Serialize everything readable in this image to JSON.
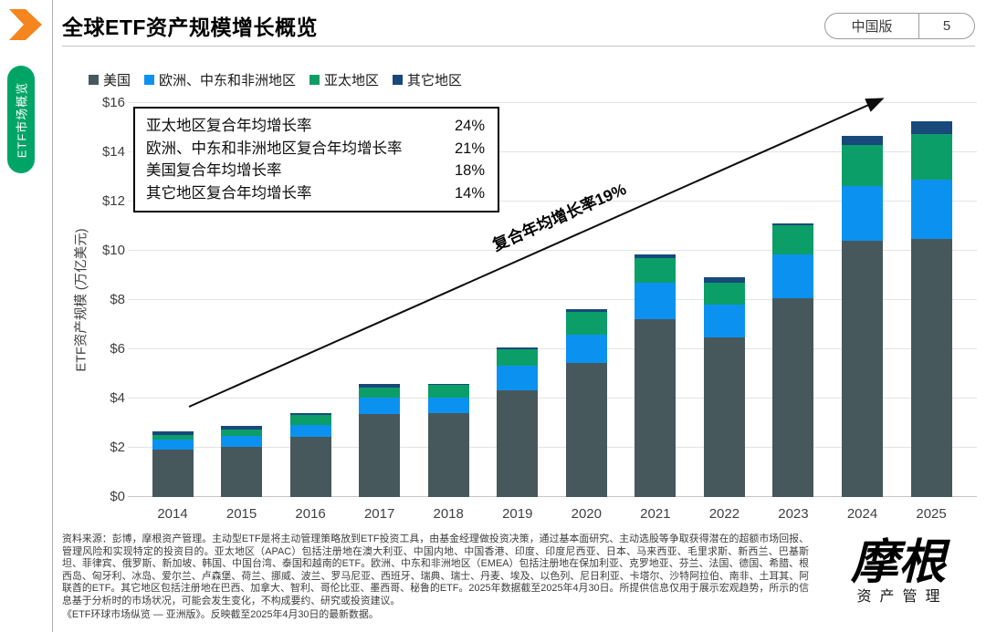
{
  "page": {
    "title": "全球ETF资产规模增长概览",
    "edition": "中国版",
    "page_number": "5",
    "sidebar_tab": "ETF市场概览"
  },
  "logo": {
    "brand": "摩根",
    "division": "资产管理"
  },
  "colors": {
    "accent_orange": "#F5861F",
    "tab_green": "#00A566",
    "us": "#47585C",
    "emea": "#0B92F0",
    "apac": "#0C9E68",
    "other": "#17497B"
  },
  "chart_data": {
    "type": "bar",
    "stacked": true,
    "ylabel": "ETF资产规模 (万亿美元)",
    "ylim": [
      0,
      16
    ],
    "ytick_step": 2,
    "yticks": [
      "$0",
      "$2",
      "$4",
      "$6",
      "$8",
      "$10",
      "$12",
      "$14",
      "$16"
    ],
    "grid": true,
    "legend_position": "top",
    "categories": [
      "2014",
      "2015",
      "2016",
      "2017",
      "2018",
      "2019",
      "2020",
      "2021",
      "2022",
      "2023",
      "2024",
      "2025"
    ],
    "series": [
      {
        "name": "美国",
        "color": "#47585C",
        "values": [
          1.93,
          2.05,
          2.44,
          3.37,
          3.4,
          4.32,
          5.45,
          7.24,
          6.48,
          8.07,
          10.41,
          10.47
        ]
      },
      {
        "name": "欧洲、中东和非洲地区",
        "color": "#0B92F0",
        "values": [
          0.41,
          0.43,
          0.47,
          0.65,
          0.62,
          1.0,
          1.15,
          1.45,
          1.33,
          1.8,
          2.22,
          2.43
        ]
      },
      {
        "name": "亚太地区",
        "color": "#0C9E68",
        "values": [
          0.17,
          0.25,
          0.43,
          0.43,
          0.52,
          0.67,
          0.93,
          1.01,
          0.91,
          1.18,
          1.67,
          1.85
        ]
      },
      {
        "name": "其它地区",
        "color": "#17497B",
        "values": [
          0.15,
          0.17,
          0.08,
          0.14,
          0.04,
          0.08,
          0.09,
          0.14,
          0.22,
          0.05,
          0.36,
          0.5
        ]
      }
    ],
    "annotations": {
      "cagr_box": [
        {
          "label": "亚太地区复合年均增长率",
          "value": "24%"
        },
        {
          "label": "欧洲、中东和非洲地区复合年均增长率",
          "value": "21%"
        },
        {
          "label": "美国复合年均增长率",
          "value": "18%"
        },
        {
          "label": "其它地区复合年均增长率",
          "value": "14%"
        }
      ],
      "arrow_label": "复合年均增长率19%"
    }
  },
  "footnote": {
    "source": "资料来源：彭博，摩根资产管理。主动型ETF是将主动管理策略放到ETF投资工具，由基金经理做投资决策，通过基本面研究、主动选股等争取获得潜在的超额市场回报、管理风险和实现特定的投资目的。亚太地区（APAC）包括注册地在澳大利亚、中国内地、中国香港、印度、印度尼西亚、日本、马来西亚、毛里求斯、新西兰、巴基斯坦、菲律宾、俄罗斯、新加坡、韩国、中国台湾、泰国和越南的ETF。欧洲、中东和非洲地区（EMEA）包括注册地在保加利亚、克罗地亚、芬兰、法国、德国、希腊、根西岛、匈牙利、冰岛、爱尔兰、卢森堡、荷兰、挪威、波兰、罗马尼亚、西班牙、瑞典、瑞士、丹麦、埃及、以色列、尼日利亚、卡塔尔、沙特阿拉伯、南非、土耳其、阿联酋的ETF。其它地区包括注册地在巴西、加拿大、智利、哥伦比亚、墨西哥、秘鲁的ETF。2025年数据截至2025年4月30日。所提供信息仅用于展示宏观趋势，所示的信息基于分析时的市场状况，可能会发生变化，不构成要约、研究或投资建议。",
    "reference": "《ETF环球市场纵览 — 亚洲版》。反映截至2025年4月30日的最新数据。"
  }
}
